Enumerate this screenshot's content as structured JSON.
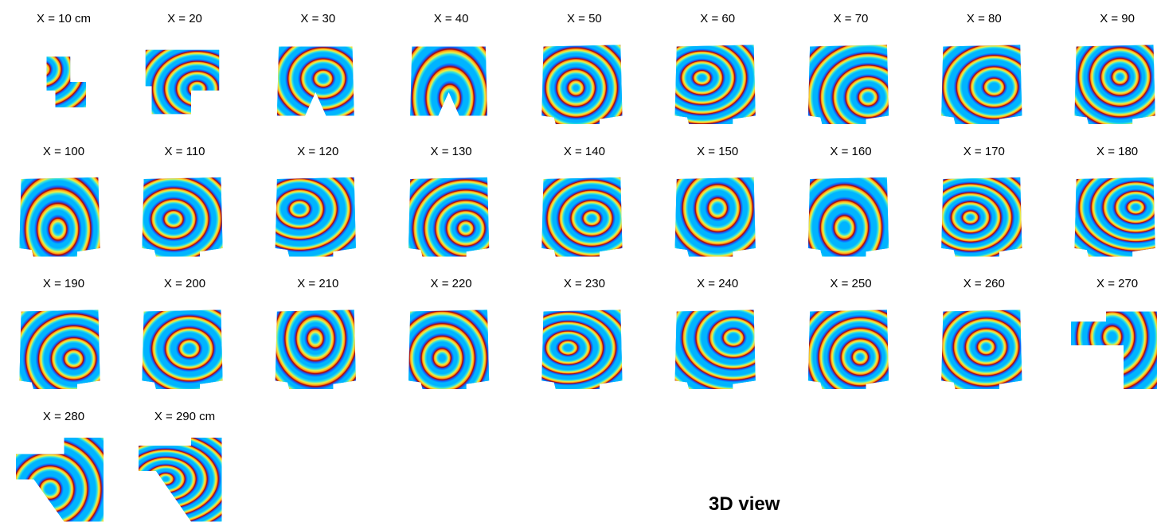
{
  "panels": [
    "X = 10 cm",
    "X = 20",
    "X = 30",
    "X = 40",
    "X = 50",
    "X = 60",
    "X = 70",
    "X = 80",
    "X = 90",
    "X = 100",
    "X = 110",
    "X = 120",
    "X = 130",
    "X = 140",
    "X = 150",
    "X = 160",
    "X = 170",
    "X = 180",
    "X = 190",
    "X = 200",
    "X = 210",
    "X = 220",
    "X = 230",
    "X = 240",
    "X = 250",
    "X = 260",
    "X = 270",
    "X = 280",
    "X = 290 cm"
  ],
  "view_title": "3D view"
}
